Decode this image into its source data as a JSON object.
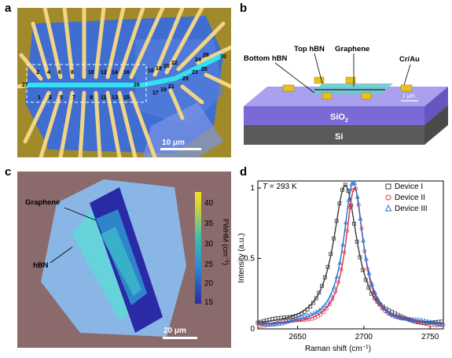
{
  "panels": {
    "a": {
      "label": "a",
      "scale_bar": "10 μm",
      "electrode_numbers_top": [
        "2",
        "4",
        "6",
        "8",
        "10",
        "12",
        "14",
        "16"
      ],
      "electrode_numbers_bottom": [
        "1",
        "3",
        "5",
        "7",
        "9",
        "11",
        "13",
        "15"
      ],
      "left_end": "27",
      "right_side": [
        "28",
        "16",
        "18",
        "20",
        "22",
        "29",
        "24",
        "26",
        "30",
        "17",
        "19",
        "21",
        "23",
        "25"
      ]
    },
    "b": {
      "label": "b",
      "labels": {
        "top_hbn": "Top hBN",
        "graphene": "Graphene",
        "bottom_hbn": "Bottom hBN",
        "cr_au": "Cr/Au",
        "sio2": "SiO",
        "sio2_sub": "2",
        "si": "Si",
        "scale": "1 μm"
      }
    },
    "c": {
      "label": "c",
      "graphene_label": "Graphene",
      "hbn_label": "hBN",
      "scale_bar": "20 μm",
      "colorbar": {
        "title": "FWHM (cm",
        "title_sup": "−1",
        "title_end": ")",
        "ticks": [
          "40",
          "35",
          "30",
          "25",
          "20",
          "15"
        ]
      }
    },
    "d": {
      "label": "d"
    }
  },
  "chart_data": {
    "type": "line",
    "title": "",
    "annotation": "T = 293 K",
    "xlabel": "Raman shift (cm",
    "xlabel_sup": "−1",
    "xlabel_end": ")",
    "ylabel": "Intensity (a.u.)",
    "xlim": [
      2620,
      2760
    ],
    "ylim": [
      0,
      1.05
    ],
    "xticks": [
      2650,
      2700,
      2750
    ],
    "yticks": [
      0,
      0.5,
      1
    ],
    "ytick_labels": [
      "0",
      "0.5",
      "1"
    ],
    "legend_position": "top-right",
    "series": [
      {
        "name": "Device I",
        "marker": "square",
        "color": "#3a3a3a",
        "center": 2686,
        "fwhm": 22,
        "peak": 1.0
      },
      {
        "name": "Device II",
        "marker": "circle",
        "color": "#e0303a",
        "center": 2693,
        "fwhm": 16.5,
        "peak": 0.98
      },
      {
        "name": "Device III",
        "marker": "triangle",
        "color": "#2a6fd6",
        "center": 2692,
        "fwhm": 18,
        "peak": 1.02
      }
    ]
  }
}
